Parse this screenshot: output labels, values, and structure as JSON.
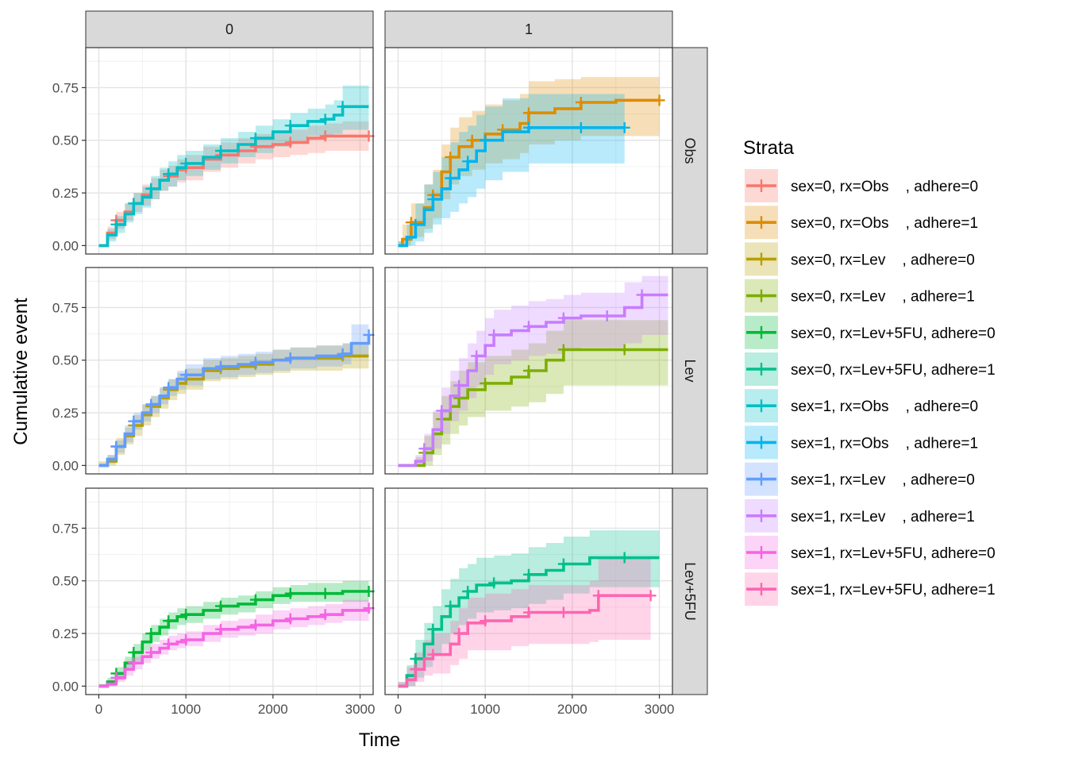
{
  "chart_data": {
    "type": "line",
    "subtype": "cumulative-incidence-step",
    "xlabel": "Time",
    "ylabel": "Cumulative event",
    "xlim": [
      -150,
      3150
    ],
    "ylim": [
      -0.04,
      0.94
    ],
    "x_ticks": [
      0,
      1000,
      2000,
      3000
    ],
    "x_tick_labels": [
      "0",
      "1000",
      "2000",
      "3000"
    ],
    "y_ticks": [
      0,
      0.25,
      0.5,
      0.75
    ],
    "y_tick_labels": [
      "0.00",
      "0.25",
      "0.50",
      "0.75"
    ],
    "grid": true,
    "facet_columns": [
      "0",
      "1"
    ],
    "facet_rows": [
      "Obs",
      "Lev",
      "Lev+5FU"
    ],
    "legend": {
      "title": "Strata",
      "position": "right"
    },
    "series": [
      {
        "name": "sex=0, rx=Obs    , adhere=0",
        "color": "#F8766D",
        "panel": [
          0,
          0
        ],
        "x": [
          0,
          100,
          200,
          300,
          400,
          500,
          600,
          700,
          800,
          900,
          1000,
          1200,
          1400,
          1600,
          1800,
          2000,
          2200,
          2400,
          2600,
          2800,
          3100
        ],
        "y": [
          0,
          0.06,
          0.12,
          0.16,
          0.2,
          0.24,
          0.27,
          0.31,
          0.33,
          0.36,
          0.37,
          0.41,
          0.43,
          0.45,
          0.47,
          0.48,
          0.49,
          0.51,
          0.52,
          0.52,
          0.52
        ],
        "lower": [
          0,
          0.03,
          0.08,
          0.12,
          0.16,
          0.19,
          0.22,
          0.26,
          0.28,
          0.3,
          0.31,
          0.35,
          0.37,
          0.39,
          0.41,
          0.42,
          0.43,
          0.44,
          0.45,
          0.45,
          0.45
        ],
        "upper": [
          0,
          0.09,
          0.16,
          0.2,
          0.25,
          0.29,
          0.32,
          0.36,
          0.38,
          0.41,
          0.43,
          0.47,
          0.49,
          0.51,
          0.53,
          0.54,
          0.55,
          0.57,
          0.58,
          0.59,
          0.59
        ]
      },
      {
        "name": "sex=0, rx=Obs    , adhere=1",
        "color": "#DE8C00",
        "panel": [
          1,
          0
        ],
        "x": [
          0,
          50,
          150,
          300,
          400,
          500,
          600,
          700,
          850,
          1000,
          1200,
          1400,
          1500,
          1800,
          2100,
          2500,
          3000
        ],
        "y": [
          0,
          0.03,
          0.11,
          0.18,
          0.24,
          0.35,
          0.42,
          0.47,
          0.5,
          0.53,
          0.55,
          0.58,
          0.63,
          0.65,
          0.68,
          0.69,
          0.69
        ],
        "lower": [
          0,
          0.0,
          0.04,
          0.08,
          0.13,
          0.22,
          0.29,
          0.33,
          0.36,
          0.39,
          0.41,
          0.44,
          0.48,
          0.5,
          0.52,
          0.52,
          0.52
        ],
        "upper": [
          0.02,
          0.1,
          0.2,
          0.29,
          0.36,
          0.48,
          0.56,
          0.61,
          0.64,
          0.67,
          0.69,
          0.72,
          0.78,
          0.79,
          0.8,
          0.8,
          0.8
        ]
      },
      {
        "name": "sex=0, rx=Lev    , adhere=0",
        "color": "#B79F00",
        "panel": [
          0,
          1
        ],
        "x": [
          0,
          100,
          200,
          300,
          400,
          500,
          600,
          700,
          800,
          900,
          1000,
          1200,
          1400,
          1600,
          1800,
          2000,
          2200,
          2500,
          2800,
          3100
        ],
        "y": [
          0,
          0.02,
          0.09,
          0.14,
          0.19,
          0.24,
          0.28,
          0.32,
          0.36,
          0.39,
          0.41,
          0.45,
          0.46,
          0.47,
          0.48,
          0.5,
          0.51,
          0.51,
          0.52,
          0.52
        ],
        "lower": [
          0,
          0.0,
          0.05,
          0.1,
          0.14,
          0.19,
          0.23,
          0.27,
          0.31,
          0.34,
          0.36,
          0.4,
          0.41,
          0.42,
          0.43,
          0.44,
          0.45,
          0.45,
          0.46,
          0.46
        ],
        "upper": [
          0.02,
          0.05,
          0.13,
          0.18,
          0.24,
          0.29,
          0.33,
          0.37,
          0.41,
          0.44,
          0.46,
          0.5,
          0.51,
          0.52,
          0.53,
          0.55,
          0.56,
          0.57,
          0.58,
          0.58
        ]
      },
      {
        "name": "sex=0, rx=Lev    , adhere=1",
        "color": "#7CAE00",
        "panel": [
          1,
          1
        ],
        "x": [
          0,
          200,
          300,
          400,
          500,
          600,
          700,
          800,
          1000,
          1300,
          1500,
          1700,
          1900,
          2200,
          2600,
          3100
        ],
        "y": [
          0,
          0.0,
          0.06,
          0.15,
          0.22,
          0.28,
          0.32,
          0.36,
          0.39,
          0.42,
          0.45,
          0.5,
          0.55,
          0.55,
          0.55,
          0.55
        ],
        "lower": [
          0,
          0.0,
          0.0,
          0.05,
          0.1,
          0.15,
          0.19,
          0.23,
          0.26,
          0.28,
          0.3,
          0.34,
          0.38,
          0.38,
          0.38,
          0.38
        ],
        "upper": [
          0,
          0.04,
          0.14,
          0.25,
          0.33,
          0.4,
          0.45,
          0.49,
          0.52,
          0.55,
          0.58,
          0.64,
          0.69,
          0.69,
          0.69,
          0.69
        ]
      },
      {
        "name": "sex=0, rx=Lev+5FU, adhere=0",
        "color": "#00BA38",
        "panel": [
          0,
          2
        ],
        "x": [
          0,
          100,
          200,
          300,
          400,
          500,
          600,
          700,
          800,
          900,
          1000,
          1200,
          1400,
          1600,
          1800,
          2000,
          2200,
          2400,
          2600,
          2800,
          3100
        ],
        "y": [
          0,
          0.02,
          0.06,
          0.11,
          0.16,
          0.21,
          0.25,
          0.28,
          0.31,
          0.33,
          0.34,
          0.36,
          0.38,
          0.39,
          0.41,
          0.43,
          0.44,
          0.44,
          0.44,
          0.45,
          0.45
        ],
        "lower": [
          0,
          0.0,
          0.03,
          0.08,
          0.12,
          0.17,
          0.21,
          0.24,
          0.27,
          0.29,
          0.3,
          0.32,
          0.34,
          0.35,
          0.37,
          0.39,
          0.4,
          0.4,
          0.4,
          0.4,
          0.4
        ],
        "upper": [
          0.01,
          0.04,
          0.09,
          0.14,
          0.2,
          0.25,
          0.29,
          0.32,
          0.35,
          0.37,
          0.38,
          0.4,
          0.42,
          0.43,
          0.45,
          0.47,
          0.48,
          0.49,
          0.49,
          0.5,
          0.5
        ]
      },
      {
        "name": "sex=0, rx=Lev+5FU, adhere=1",
        "color": "#00C08B",
        "panel": [
          1,
          2
        ],
        "x": [
          0,
          100,
          200,
          300,
          400,
          500,
          600,
          700,
          800,
          900,
          1100,
          1300,
          1500,
          1700,
          1900,
          2200,
          2600,
          3000
        ],
        "y": [
          0,
          0.05,
          0.13,
          0.2,
          0.27,
          0.33,
          0.38,
          0.42,
          0.45,
          0.48,
          0.49,
          0.5,
          0.53,
          0.55,
          0.58,
          0.61,
          0.61,
          0.61
        ],
        "lower": [
          0,
          0.0,
          0.04,
          0.09,
          0.15,
          0.2,
          0.25,
          0.29,
          0.32,
          0.35,
          0.36,
          0.37,
          0.39,
          0.41,
          0.44,
          0.47,
          0.47,
          0.47
        ],
        "upper": [
          0.02,
          0.1,
          0.22,
          0.3,
          0.38,
          0.46,
          0.51,
          0.56,
          0.58,
          0.61,
          0.62,
          0.63,
          0.66,
          0.68,
          0.71,
          0.74,
          0.74,
          0.74
        ]
      },
      {
        "name": "sex=1, rx=Obs    , adhere=0",
        "color": "#00BFC4",
        "panel": [
          0,
          0
        ],
        "x": [
          0,
          100,
          200,
          300,
          400,
          500,
          600,
          700,
          800,
          900,
          1000,
          1200,
          1400,
          1600,
          1800,
          2000,
          2200,
          2400,
          2600,
          2700,
          2800,
          3100
        ],
        "y": [
          0,
          0.05,
          0.1,
          0.15,
          0.2,
          0.23,
          0.27,
          0.31,
          0.34,
          0.37,
          0.39,
          0.42,
          0.45,
          0.48,
          0.51,
          0.54,
          0.57,
          0.59,
          0.6,
          0.62,
          0.66,
          0.66
        ],
        "lower": [
          0,
          0.02,
          0.06,
          0.11,
          0.15,
          0.18,
          0.22,
          0.26,
          0.28,
          0.31,
          0.33,
          0.36,
          0.39,
          0.42,
          0.44,
          0.47,
          0.5,
          0.52,
          0.52,
          0.53,
          0.55,
          0.55
        ],
        "upper": [
          0,
          0.08,
          0.14,
          0.2,
          0.25,
          0.28,
          0.33,
          0.37,
          0.4,
          0.43,
          0.45,
          0.48,
          0.51,
          0.54,
          0.57,
          0.6,
          0.63,
          0.65,
          0.67,
          0.69,
          0.76,
          0.76
        ]
      },
      {
        "name": "sex=1, rx=Obs    , adhere=1",
        "color": "#00B4F0",
        "panel": [
          1,
          0
        ],
        "x": [
          0,
          100,
          200,
          300,
          400,
          500,
          600,
          700,
          800,
          900,
          1000,
          1200,
          1500,
          1800,
          2100,
          2300,
          2600
        ],
        "y": [
          0,
          0.04,
          0.1,
          0.17,
          0.22,
          0.27,
          0.32,
          0.36,
          0.4,
          0.45,
          0.5,
          0.54,
          0.56,
          0.56,
          0.56,
          0.56,
          0.56
        ],
        "lower": [
          0,
          0.0,
          0.02,
          0.06,
          0.1,
          0.13,
          0.16,
          0.2,
          0.23,
          0.27,
          0.31,
          0.35,
          0.39,
          0.39,
          0.39,
          0.39,
          0.39
        ],
        "upper": [
          0.02,
          0.1,
          0.2,
          0.29,
          0.35,
          0.42,
          0.49,
          0.54,
          0.57,
          0.62,
          0.66,
          0.7,
          0.72,
          0.72,
          0.72,
          0.72,
          0.72
        ]
      },
      {
        "name": "sex=1, rx=Lev    , adhere=0",
        "color": "#619CFF",
        "panel": [
          0,
          1
        ],
        "x": [
          0,
          100,
          200,
          300,
          400,
          500,
          600,
          700,
          800,
          900,
          1000,
          1200,
          1400,
          1600,
          1800,
          2000,
          2200,
          2500,
          2800,
          2900,
          3100
        ],
        "y": [
          0,
          0.03,
          0.09,
          0.15,
          0.21,
          0.25,
          0.29,
          0.33,
          0.37,
          0.41,
          0.43,
          0.46,
          0.47,
          0.48,
          0.49,
          0.5,
          0.51,
          0.52,
          0.53,
          0.58,
          0.62
        ],
        "lower": [
          0,
          0.01,
          0.06,
          0.11,
          0.17,
          0.21,
          0.25,
          0.29,
          0.33,
          0.36,
          0.38,
          0.41,
          0.42,
          0.43,
          0.44,
          0.45,
          0.46,
          0.47,
          0.48,
          0.51,
          0.52
        ],
        "upper": [
          0.01,
          0.05,
          0.12,
          0.19,
          0.25,
          0.29,
          0.33,
          0.37,
          0.41,
          0.45,
          0.48,
          0.51,
          0.52,
          0.53,
          0.54,
          0.55,
          0.56,
          0.57,
          0.58,
          0.67,
          0.72
        ]
      },
      {
        "name": "sex=1, rx=Lev    , adhere=1",
        "color": "#C77CFF",
        "panel": [
          1,
          1
        ],
        "x": [
          0,
          200,
          300,
          400,
          500,
          600,
          700,
          800,
          900,
          1000,
          1100,
          1300,
          1500,
          1700,
          1900,
          2100,
          2400,
          2600,
          2800,
          3100
        ],
        "y": [
          0,
          0.02,
          0.08,
          0.17,
          0.26,
          0.33,
          0.38,
          0.45,
          0.52,
          0.57,
          0.62,
          0.64,
          0.66,
          0.68,
          0.7,
          0.71,
          0.71,
          0.75,
          0.81,
          0.81
        ],
        "lower": [
          0,
          0.0,
          0.02,
          0.08,
          0.15,
          0.21,
          0.26,
          0.32,
          0.38,
          0.43,
          0.48,
          0.5,
          0.52,
          0.53,
          0.55,
          0.56,
          0.56,
          0.58,
          0.62,
          0.62
        ],
        "upper": [
          0,
          0.05,
          0.15,
          0.26,
          0.37,
          0.45,
          0.51,
          0.58,
          0.64,
          0.7,
          0.74,
          0.76,
          0.78,
          0.79,
          0.81,
          0.82,
          0.82,
          0.87,
          0.9,
          0.9
        ]
      },
      {
        "name": "sex=1, rx=Lev+5FU, adhere=0",
        "color": "#F564E3",
        "panel": [
          0,
          2
        ],
        "x": [
          0,
          100,
          200,
          300,
          400,
          500,
          600,
          700,
          800,
          900,
          1000,
          1200,
          1400,
          1600,
          1800,
          2000,
          2200,
          2400,
          2600,
          2800,
          3100
        ],
        "y": [
          0,
          0.01,
          0.04,
          0.08,
          0.11,
          0.14,
          0.16,
          0.18,
          0.2,
          0.21,
          0.22,
          0.25,
          0.27,
          0.28,
          0.29,
          0.31,
          0.32,
          0.33,
          0.34,
          0.36,
          0.37
        ],
        "lower": [
          0,
          0.0,
          0.02,
          0.05,
          0.08,
          0.11,
          0.13,
          0.15,
          0.17,
          0.18,
          0.19,
          0.21,
          0.23,
          0.24,
          0.25,
          0.27,
          0.28,
          0.29,
          0.3,
          0.31,
          0.32
        ],
        "upper": [
          0.01,
          0.03,
          0.07,
          0.11,
          0.14,
          0.17,
          0.2,
          0.22,
          0.24,
          0.25,
          0.26,
          0.29,
          0.31,
          0.32,
          0.34,
          0.36,
          0.37,
          0.38,
          0.39,
          0.41,
          0.42
        ]
      },
      {
        "name": "sex=1, rx=Lev+5FU, adhere=1",
        "color": "#FF64B0",
        "panel": [
          1,
          2
        ],
        "x": [
          0,
          100,
          200,
          300,
          400,
          600,
          700,
          800,
          1000,
          1300,
          1500,
          1700,
          1900,
          2200,
          2300,
          2600,
          2900
        ],
        "y": [
          0,
          0.03,
          0.08,
          0.13,
          0.15,
          0.2,
          0.25,
          0.3,
          0.31,
          0.33,
          0.35,
          0.35,
          0.35,
          0.36,
          0.43,
          0.43,
          0.43
        ],
        "lower": [
          0,
          0.0,
          0.02,
          0.05,
          0.06,
          0.1,
          0.13,
          0.17,
          0.17,
          0.19,
          0.2,
          0.2,
          0.2,
          0.21,
          0.22,
          0.22,
          0.22
        ],
        "upper": [
          0.02,
          0.09,
          0.16,
          0.22,
          0.25,
          0.31,
          0.37,
          0.42,
          0.44,
          0.46,
          0.48,
          0.48,
          0.48,
          0.5,
          0.61,
          0.61,
          0.61
        ]
      }
    ]
  }
}
